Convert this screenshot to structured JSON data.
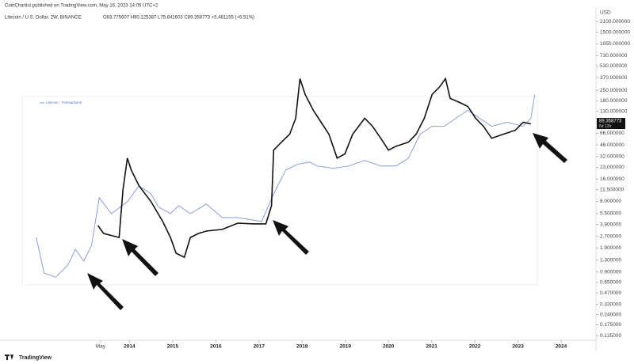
{
  "header": {
    "publisher": "CoinChartist published on TradingView.com, May 16, 2023 14:05 UTC+2",
    "symbol": "Litecoin / U.S. Dollar, 2W, BINANCE",
    "ohlc": "O83.775607 H90.125387 L75.841603 C89.358773 +5.481155 (+6.51%)"
  },
  "footer": {
    "logo": "TradingView"
  },
  "chart_data": {
    "type": "line",
    "log_y": true,
    "currency": "USD",
    "legend": "Litecoin - Transactions",
    "last_price": 89.358773,
    "countdown": "5d 12h",
    "xlim": [
      2011,
      2024.77
    ],
    "ylim": [
      0.085,
      3200
    ],
    "xticks": [
      {
        "value": 2013.33,
        "label": "May"
      },
      2014,
      2015,
      2016,
      2017,
      2018,
      2019,
      2020,
      2021,
      2022,
      2023,
      2024
    ],
    "yticks": [
      {
        "value": 2100,
        "label": "2100.000000"
      },
      {
        "value": 1500,
        "label": "1500.000000"
      },
      {
        "value": 1050,
        "label": "1050.000000"
      },
      {
        "value": 730,
        "label": "730.000000"
      },
      {
        "value": 530,
        "label": "530.000000"
      },
      {
        "value": 370,
        "label": "370.000000"
      },
      {
        "value": 250,
        "label": "250.000000"
      },
      {
        "value": 180,
        "label": "180.000000"
      },
      {
        "value": 130,
        "label": "130.000000"
      },
      {
        "value": 66,
        "label": "66.000000"
      },
      {
        "value": 46,
        "label": "46.000000"
      },
      {
        "value": 32,
        "label": "32.000000"
      },
      {
        "value": 23,
        "label": "23.000000"
      },
      {
        "value": 16,
        "label": "16.000000"
      },
      {
        "value": 11.5,
        "label": "11.500000"
      },
      {
        "value": 8,
        "label": "8.000000"
      },
      {
        "value": 5.5,
        "label": "5.500000"
      },
      {
        "value": 3.9,
        "label": "3.900000"
      },
      {
        "value": 2.7,
        "label": "2.700000"
      },
      {
        "value": 1.9,
        "label": "1.900000"
      },
      {
        "value": 1.3,
        "label": "1.300000"
      },
      {
        "value": 0.9,
        "label": "0.900000"
      },
      {
        "value": 0.65,
        "label": "0.650000"
      },
      {
        "value": 0.47,
        "label": "0.470000"
      },
      {
        "value": 0.33,
        "label": "0.330000"
      },
      {
        "value": 0.24,
        "label": "0.240000"
      },
      {
        "value": 0.175,
        "label": "0.175000"
      },
      {
        "value": 0.125,
        "label": "0.125000"
      }
    ],
    "series": [
      {
        "color": "#111111",
        "x": [
          2013.27,
          2013.4,
          2013.76,
          2013.85,
          2013.95,
          2014.04,
          2014.22,
          2014.5,
          2014.77,
          2014.95,
          2015.08,
          2015.27,
          2015.41,
          2015.6,
          2015.78,
          2016.15,
          2016.51,
          2016.88,
          2017.16,
          2017.29,
          2017.34,
          2017.52,
          2017.71,
          2017.85,
          2017.95,
          2018.07,
          2018.26,
          2018.44,
          2018.62,
          2018.81,
          2018.99,
          2019.17,
          2019.45,
          2019.63,
          2019.82,
          2020.0,
          2020.18,
          2020.46,
          2020.64,
          2020.83,
          2021.01,
          2021.19,
          2021.32,
          2021.43,
          2021.65,
          2021.84,
          2022.02,
          2022.2,
          2022.39,
          2022.66,
          2022.94,
          2023.12,
          2023.3
        ],
        "values": [
          3.79,
          2.97,
          2.62,
          11.5,
          30.6,
          21.2,
          13.0,
          7.93,
          4.3,
          2.62,
          1.61,
          1.42,
          2.62,
          2.97,
          3.19,
          3.36,
          4.08,
          3.99,
          3.99,
          7.01,
          39.2,
          50.1,
          64.1,
          105,
          358,
          219,
          134,
          92.7,
          64.1,
          30.6,
          34.7,
          64.1,
          105,
          81.8,
          56.6,
          39.2,
          44.3,
          50.1,
          64.1,
          105,
          219,
          280,
          358,
          194,
          171,
          151,
          105,
          81.8,
          56.6,
          64.1,
          72.4,
          92.7,
          88.1
        ]
      },
      {
        "name": "Litecoin - Transactions",
        "color": "#8e9bd8",
        "x": [
          2011.84,
          2012.02,
          2012.29,
          2012.57,
          2012.75,
          2012.94,
          2013.12,
          2013.3,
          2013.58,
          2013.95,
          2014.22,
          2014.5,
          2014.68,
          2014.95,
          2015.14,
          2015.41,
          2015.78,
          2016.15,
          2016.51,
          2017.06,
          2017.34,
          2017.62,
          2017.89,
          2018.17,
          2018.35,
          2018.72,
          2019.08,
          2019.45,
          2019.82,
          2020.18,
          2020.46,
          2020.73,
          2021.01,
          2021.29,
          2021.56,
          2021.84,
          2022.11,
          2022.39,
          2022.75,
          2023.12,
          2023.3,
          2023.39
        ],
        "values": [
          2.62,
          0.869,
          0.767,
          1.11,
          1.82,
          1.26,
          2.05,
          8.97,
          5.48,
          7.93,
          13.0,
          10.1,
          6.68,
          5.48,
          7.01,
          5.48,
          7.36,
          4.85,
          4.85,
          4.3,
          10.1,
          21.2,
          25.2,
          27.1,
          24.0,
          22.3,
          24.0,
          28.4,
          24.0,
          24.0,
          30.6,
          64.1,
          81.8,
          81.8,
          105,
          134,
          105,
          81.8,
          92.7,
          81.8,
          105,
          219
        ]
      }
    ]
  }
}
